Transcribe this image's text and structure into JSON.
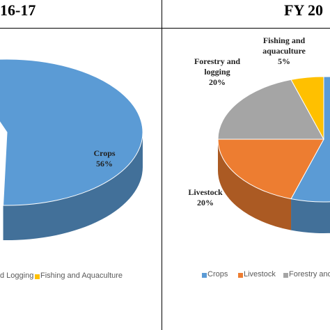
{
  "chart_data": [
    {
      "type": "pie",
      "title": "16-17",
      "categories": [
        "Crops"
      ],
      "values": [
        56
      ],
      "value_labels": [
        "56%"
      ],
      "colors": [
        "#5b9bd5"
      ],
      "legend": [
        {
          "name": "d Logging"
        },
        {
          "name": "Fishing and Aquaculture",
          "color": "#ffc000"
        }
      ]
    },
    {
      "type": "pie",
      "title": "FY 20",
      "categories": [
        null,
        "Livestock",
        "Forestry and logging",
        "Fishing and aquaculture"
      ],
      "values": [
        55,
        20,
        20,
        5
      ],
      "value_labels": [
        null,
        "20%",
        "20%",
        "5%"
      ],
      "colors": [
        "#5b9bd5",
        "#ed7d31",
        "#a5a5a5",
        "#ffc000"
      ],
      "legend": [
        {
          "name": "Crops",
          "color": "#5b9bd5"
        },
        {
          "name": "Livestock",
          "color": "#ed7d31"
        },
        {
          "name": "Forestry and",
          "color": "#a5a5a5"
        }
      ]
    }
  ]
}
